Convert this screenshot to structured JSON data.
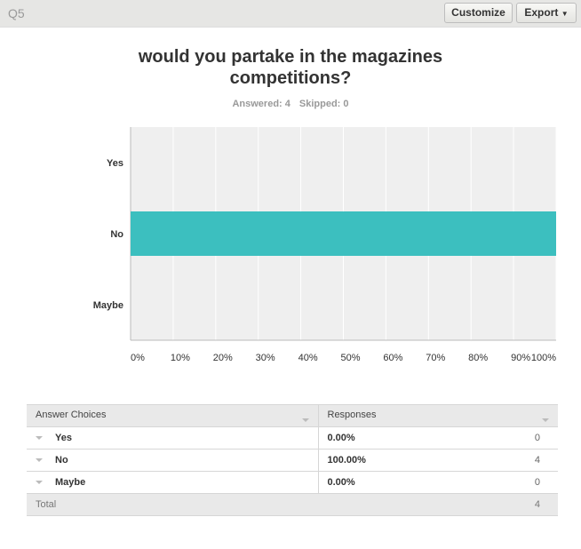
{
  "header": {
    "question_number": "Q5",
    "customize_label": "Customize",
    "export_label": "Export"
  },
  "chart_data": {
    "type": "bar",
    "orientation": "horizontal",
    "title": "would you  partake in the magazines competitions?",
    "categories": [
      "Yes",
      "No",
      "Maybe"
    ],
    "values": [
      0,
      100,
      0
    ],
    "xlim": [
      0,
      100
    ],
    "x_ticks": [
      "0%",
      "10%",
      "20%",
      "30%",
      "40%",
      "50%",
      "60%",
      "70%",
      "80%",
      "90%",
      "100%"
    ],
    "grid": true,
    "bar_color": "#3cbfbf"
  },
  "summary": {
    "answered": "Answered: 4",
    "skipped": "Skipped: 0"
  },
  "table": {
    "headers": [
      "Answer Choices",
      "Responses"
    ],
    "rows": [
      {
        "choice": "Yes",
        "percent": "0.00%",
        "count": "0"
      },
      {
        "choice": "No",
        "percent": "100.00%",
        "count": "4"
      },
      {
        "choice": "Maybe",
        "percent": "0.00%",
        "count": "0"
      }
    ],
    "total_label": "Total",
    "total_count": "4"
  }
}
